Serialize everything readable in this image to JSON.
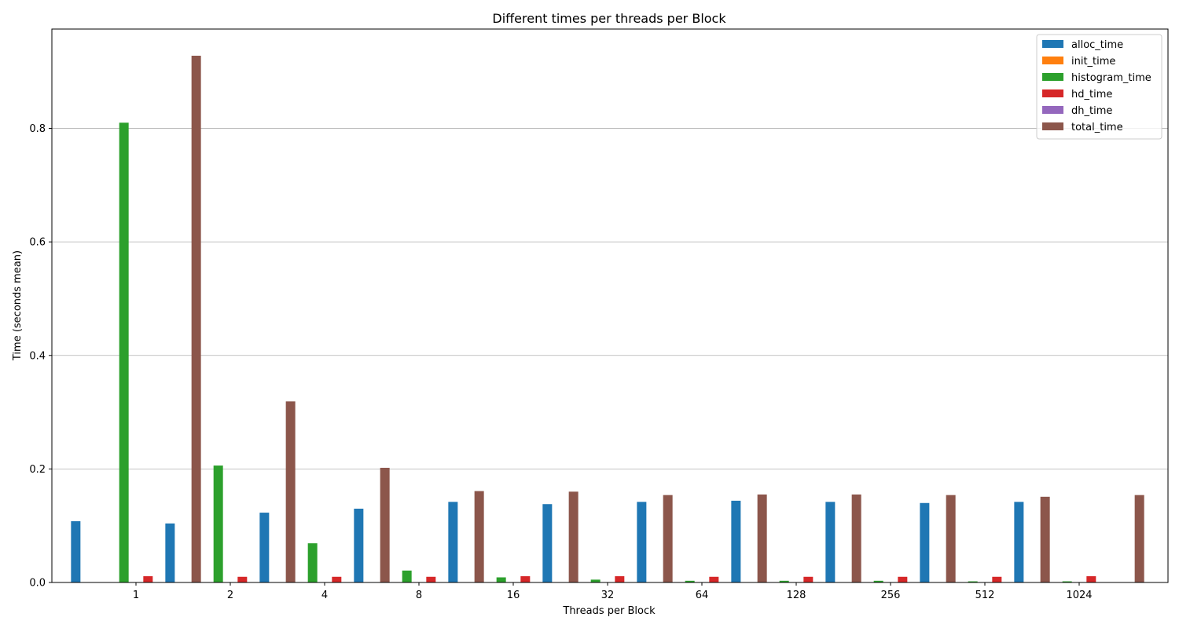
{
  "chart_data": {
    "type": "bar",
    "title": "Different times per threads per Block",
    "xlabel": "Threads per Block",
    "ylabel": "Time (seconds mean)",
    "ylim": [
      0,
      0.975
    ],
    "yticks": [
      0.0,
      0.2,
      0.4,
      0.6,
      0.8
    ],
    "ytick_labels": [
      "0.0",
      "0.2",
      "0.4",
      "0.6",
      "0.8"
    ],
    "grid": "horizontal",
    "legend_position": "top-right",
    "categories": [
      "1",
      "2",
      "4",
      "8",
      "16",
      "32",
      "64",
      "128",
      "256",
      "512",
      "1024"
    ],
    "series": [
      {
        "name": "alloc_time",
        "color": "#1f77b4",
        "values": [
          0.108,
          0.104,
          0.123,
          0.13,
          0.142,
          0.138,
          0.142,
          0.144,
          0.142,
          0.14,
          0.142
        ]
      },
      {
        "name": "init_time",
        "color": "#ff7f0e",
        "values": [
          0.0001,
          0.0001,
          0.0001,
          0.0001,
          0.0001,
          0.0001,
          0.0001,
          0.0001,
          0.0001,
          0.0001,
          0.0001
        ]
      },
      {
        "name": "histogram_time",
        "color": "#2ca02c",
        "values": [
          0.81,
          0.206,
          0.069,
          0.021,
          0.009,
          0.005,
          0.003,
          0.003,
          0.003,
          0.002,
          0.002
        ]
      },
      {
        "name": "hd_time",
        "color": "#d62728",
        "values": [
          0.011,
          0.01,
          0.01,
          0.01,
          0.011,
          0.011,
          0.01,
          0.01,
          0.01,
          0.01,
          0.011
        ]
      },
      {
        "name": "dh_time",
        "color": "#9467bd",
        "values": [
          0.0001,
          0.0001,
          0.0001,
          0.0001,
          0.0001,
          0.0001,
          0.0001,
          0.0001,
          0.0001,
          0.0001,
          0.0001
        ]
      },
      {
        "name": "total_time",
        "color": "#8c564b",
        "values": [
          0.928,
          0.319,
          0.202,
          0.161,
          0.16,
          0.154,
          0.155,
          0.155,
          0.154,
          0.151,
          0.154
        ]
      }
    ]
  }
}
